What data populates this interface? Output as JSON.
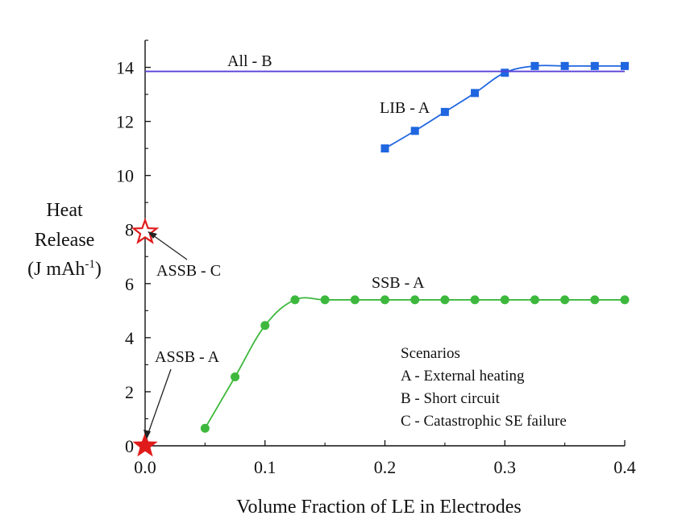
{
  "chart_data": {
    "type": "line",
    "xlabel": "Volume Fraction of LE in Electrodes",
    "ylabel_lines": [
      "Heat",
      "Release"
    ],
    "ylabel_unit": {
      "base": "(J mAh",
      "sup": "-1",
      "close": ")"
    },
    "xlim": [
      0.0,
      0.4
    ],
    "ylim": [
      0,
      15
    ],
    "xticks": [
      {
        "value": 0.0,
        "label": "0.0"
      },
      {
        "value": 0.1,
        "label": "0.1"
      },
      {
        "value": 0.2,
        "label": "0.2"
      },
      {
        "value": 0.3,
        "label": "0.3"
      },
      {
        "value": 0.4,
        "label": "0.4"
      }
    ],
    "yticks": [
      {
        "value": 0,
        "label": "0"
      },
      {
        "value": 2,
        "label": "2"
      },
      {
        "value": 4,
        "label": "4"
      },
      {
        "value": 6,
        "label": "6"
      },
      {
        "value": 8,
        "label": "8"
      },
      {
        "value": 10,
        "label": "10"
      },
      {
        "value": 12,
        "label": "12"
      },
      {
        "value": 14,
        "label": "14"
      }
    ],
    "grid": false,
    "series": [
      {
        "name": "LIB - A",
        "color": "#1f66e0",
        "marker": "square",
        "x": [
          0.2,
          0.225,
          0.25,
          0.275,
          0.3,
          0.325,
          0.35,
          0.375,
          0.4
        ],
        "y": [
          11.0,
          11.65,
          12.35,
          13.05,
          13.8,
          14.05,
          14.05,
          14.05,
          14.05
        ]
      },
      {
        "name": "SSB - A",
        "color": "#3db83d",
        "marker": "circle",
        "x": [
          0.05,
          0.075,
          0.1,
          0.125,
          0.15,
          0.175,
          0.2,
          0.225,
          0.25,
          0.275,
          0.3,
          0.325,
          0.35,
          0.375,
          0.4
        ],
        "y": [
          0.65,
          2.55,
          4.45,
          5.4,
          5.4,
          5.4,
          5.4,
          5.4,
          5.4,
          5.4,
          5.4,
          5.4,
          5.4,
          5.4,
          5.4
        ]
      },
      {
        "name": "All - B",
        "color": "#5a3fd8",
        "marker": "none",
        "x": [
          0.0,
          0.4
        ],
        "y": [
          13.85,
          13.85
        ]
      }
    ],
    "points": [
      {
        "name": "ASSB - A",
        "x": 0.0,
        "y": 0.0,
        "marker": "star-filled",
        "color": "#e01b1b"
      },
      {
        "name": "ASSB - C",
        "x": 0.0,
        "y": 7.9,
        "marker": "star-open",
        "color": "#e01b1b"
      }
    ],
    "annotations": [
      {
        "text": "All - B"
      },
      {
        "text": "LIB - A"
      },
      {
        "text": "SSB - A"
      },
      {
        "text": "ASSB - C"
      },
      {
        "text": "ASSB - A"
      }
    ],
    "legend": {
      "position": "bottom-right",
      "title": "Scenarios",
      "entries": [
        "A - External heating",
        "B - Short circuit",
        "C - Catastrophic SE failure"
      ]
    }
  }
}
